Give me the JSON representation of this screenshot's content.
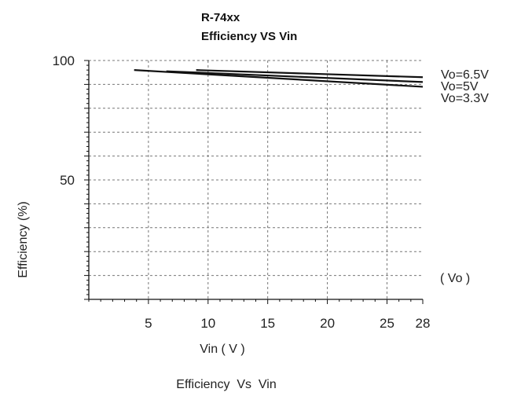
{
  "chart_data": {
    "type": "line",
    "title": "R-74xx",
    "subtitle": "Efficiency VS Vin",
    "xlabel": "Vin ( V )",
    "ylabel": "Efficiency (%)",
    "caption": "Efficiency  Vs  Vin",
    "xlim": [
      0,
      28
    ],
    "ylim": [
      0,
      100
    ],
    "x_ticks": [
      5,
      10,
      15,
      20,
      25,
      28
    ],
    "y_tick_labels": [
      50,
      100
    ],
    "grid": true,
    "legend_title": "( Vo )",
    "legend_position": "right",
    "series": [
      {
        "name": "Vo=6.5V",
        "x": [
          9,
          28
        ],
        "y": [
          96,
          93
        ]
      },
      {
        "name": "Vo=5V",
        "x": [
          6.5,
          28
        ],
        "y": [
          95.5,
          91
        ]
      },
      {
        "name": "Vo=3.3V",
        "x": [
          3.8,
          28
        ],
        "y": [
          96,
          89
        ]
      }
    ]
  }
}
